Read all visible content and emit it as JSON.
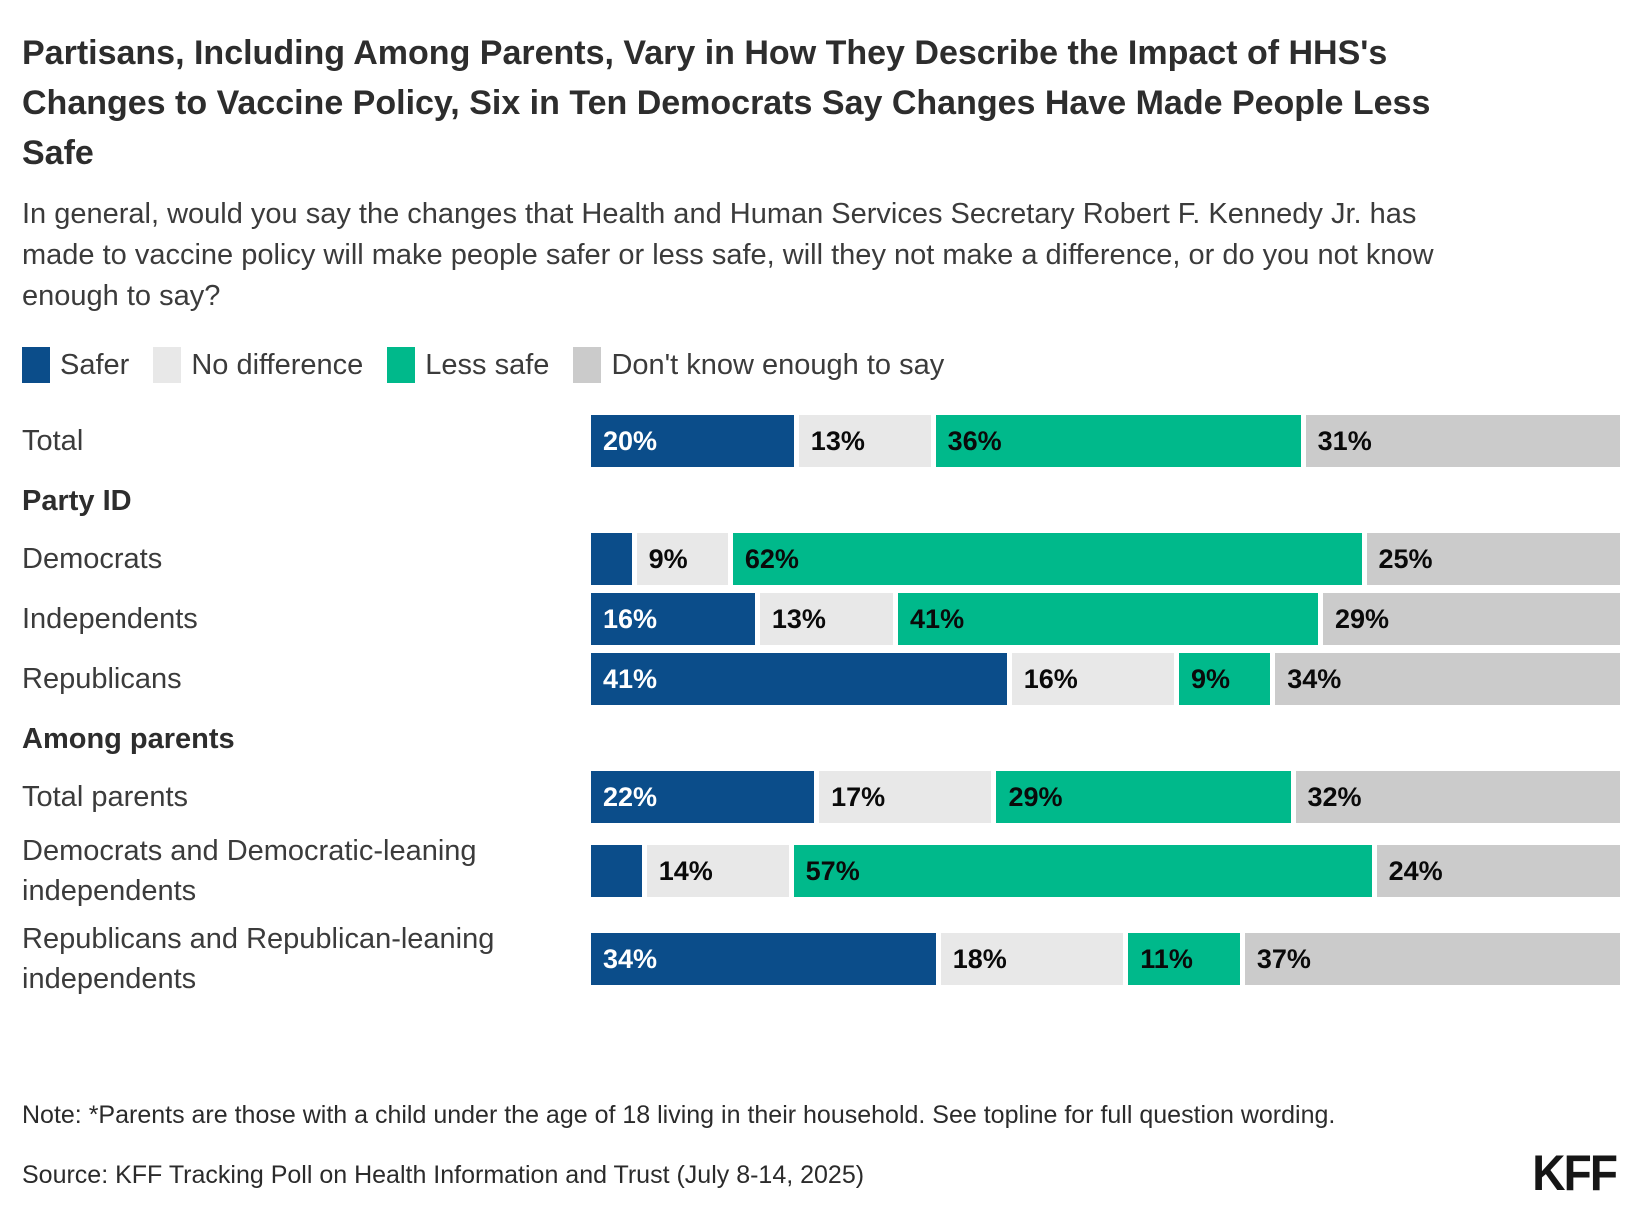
{
  "title": "Partisans, Including Among Parents, Vary in How They Describe the Impact of HHS's Changes to Vaccine Policy, Six in Ten Democrats Say Changes Have Made People Less Safe",
  "subtitle": "In general, would you say the changes that Health and Human Services Secretary Robert F. Kennedy Jr. has made to vaccine policy will make people safer or less safe, will they not make a difference, or do you not know enough to say?",
  "legend": [
    {
      "label": "Safer",
      "color": "#0b4d8a"
    },
    {
      "label": "No difference",
      "color": "#e8e8e8"
    },
    {
      "label": "Less safe",
      "color": "#00b98b"
    },
    {
      "label": "Don't know enough to say",
      "color": "#cbcbcb"
    }
  ],
  "chart_data": {
    "type": "bar",
    "stacked": true,
    "orientation": "horizontal",
    "title": "Partisans, Including Among Parents, Vary in How They Describe the Impact of HHS's Changes to Vaccine Policy, Six in Ten Democrats Say Changes Have Made People Less Safe",
    "series_names": [
      "Safer",
      "No difference",
      "Less safe",
      "Don't know enough to say"
    ],
    "colors": [
      "#0b4d8a",
      "#e8e8e8",
      "#00b98b",
      "#cbcbcb"
    ],
    "xlim": [
      0,
      100
    ],
    "unit": "percent",
    "rows": [
      {
        "category": "Total",
        "header": false,
        "values": [
          20,
          13,
          36,
          31
        ],
        "labels": [
          "20%",
          "13%",
          "36%",
          "31%"
        ]
      },
      {
        "category": "Party ID",
        "header": true
      },
      {
        "category": "Democrats",
        "header": false,
        "values": [
          4,
          9,
          62,
          25
        ],
        "labels": [
          "",
          "9%",
          "62%",
          "25%"
        ]
      },
      {
        "category": "Independents",
        "header": false,
        "values": [
          16,
          13,
          41,
          29
        ],
        "labels": [
          "16%",
          "13%",
          "41%",
          "29%"
        ]
      },
      {
        "category": "Republicans",
        "header": false,
        "values": [
          41,
          16,
          9,
          34
        ],
        "labels": [
          "41%",
          "16%",
          "9%",
          "34%"
        ]
      },
      {
        "category": "Among parents",
        "header": true
      },
      {
        "category": "Total parents",
        "header": false,
        "values": [
          22,
          17,
          29,
          32
        ],
        "labels": [
          "22%",
          "17%",
          "29%",
          "32%"
        ]
      },
      {
        "category": "Democrats and Democratic-leaning independents",
        "header": false,
        "values": [
          5,
          14,
          57,
          24
        ],
        "labels": [
          "",
          "14%",
          "57%",
          "24%"
        ]
      },
      {
        "category": "Republicans and Republican-leaning independents",
        "header": false,
        "values": [
          34,
          18,
          11,
          37
        ],
        "labels": [
          "34%",
          "18%",
          "11%",
          "37%"
        ]
      }
    ]
  },
  "note": "Note: *Parents are those with a child under the age of 18 living in their household. See topline for full question wording.",
  "source": "Source: KFF Tracking Poll on Health Information and Trust (July 8-14, 2025)",
  "logo": "KFF"
}
